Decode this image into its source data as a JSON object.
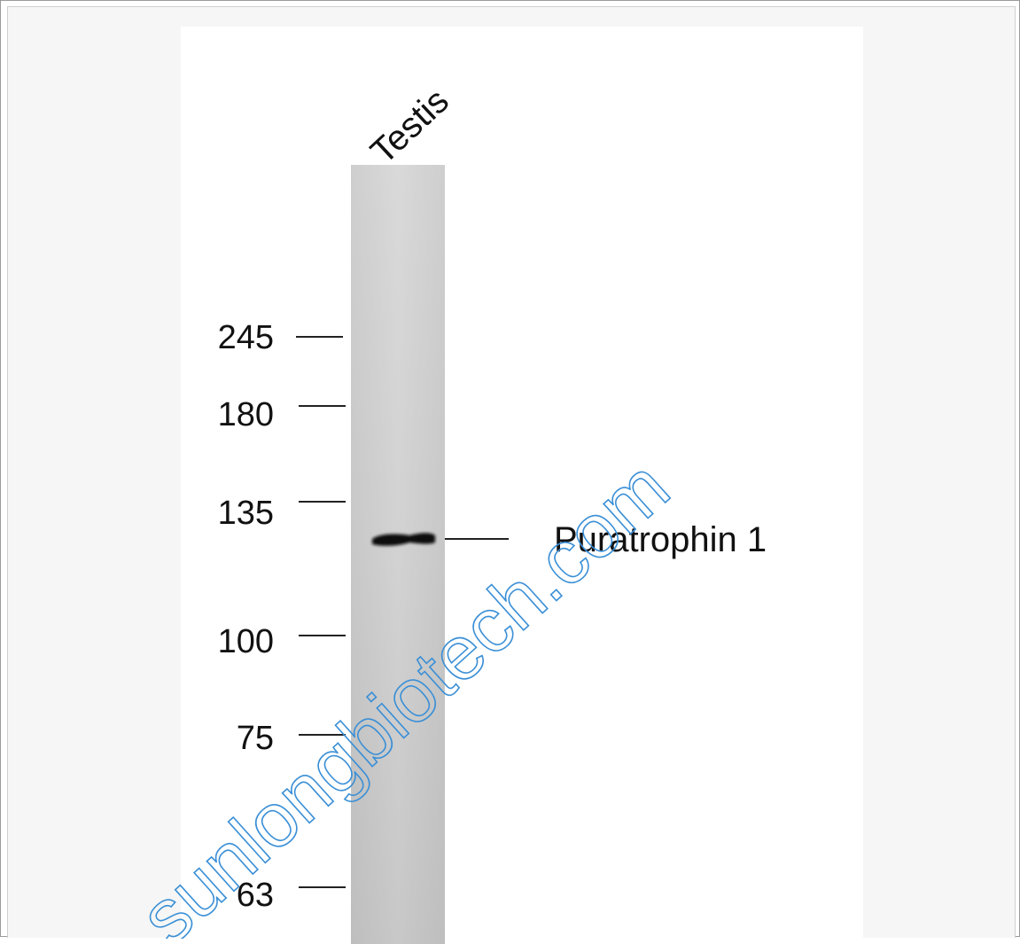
{
  "lane_label": "Testis",
  "band_label": "Puratrophin 1",
  "markers": [
    {
      "label": "245"
    },
    {
      "label": "180"
    },
    {
      "label": "135"
    },
    {
      "label": "100"
    },
    {
      "label": "75"
    },
    {
      "label": "63"
    }
  ],
  "watermark": "sunlongbiotech.com",
  "colors": {
    "watermark": "#3a8fd6",
    "lane": "#d4d4d4",
    "band": "#111111"
  }
}
